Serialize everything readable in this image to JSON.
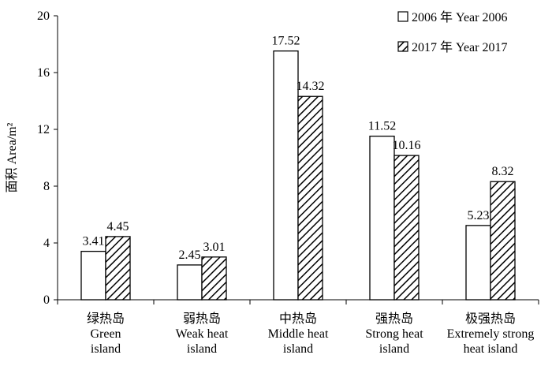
{
  "chart_data": {
    "type": "bar",
    "categories": [
      [
        "绿热岛",
        "Green",
        "island"
      ],
      [
        "弱热岛",
        "Weak heat",
        "island"
      ],
      [
        "中热岛",
        "Middle heat",
        "island"
      ],
      [
        "强热岛",
        "Strong heat",
        "island"
      ],
      [
        "极强热岛",
        "Extremely strong",
        "heat island"
      ]
    ],
    "series": [
      {
        "name": "2006 年 Year 2006",
        "values": [
          3.41,
          2.45,
          17.52,
          11.52,
          5.23
        ],
        "labels": [
          "3.41",
          "2.45",
          "17.52",
          "11.52",
          "5.23"
        ],
        "fill": "white"
      },
      {
        "name": "2017 年 Year 2017",
        "values": [
          4.45,
          3.01,
          14.32,
          10.16,
          8.32
        ],
        "labels": [
          "4.45",
          "3.01",
          "14.32",
          "10.16",
          "8.32"
        ],
        "fill": "hatched"
      }
    ],
    "ylabel": "面积 Area/m²",
    "xlabel": "",
    "ylim": [
      0,
      20
    ],
    "yticks": [
      "0",
      "4",
      "8",
      "12",
      "16",
      "20"
    ],
    "grid": false,
    "legend": "top-right",
    "colors": {
      "bar_stroke": "#000000",
      "bar_fill": "#ffffff",
      "hatch": "#000000"
    }
  }
}
